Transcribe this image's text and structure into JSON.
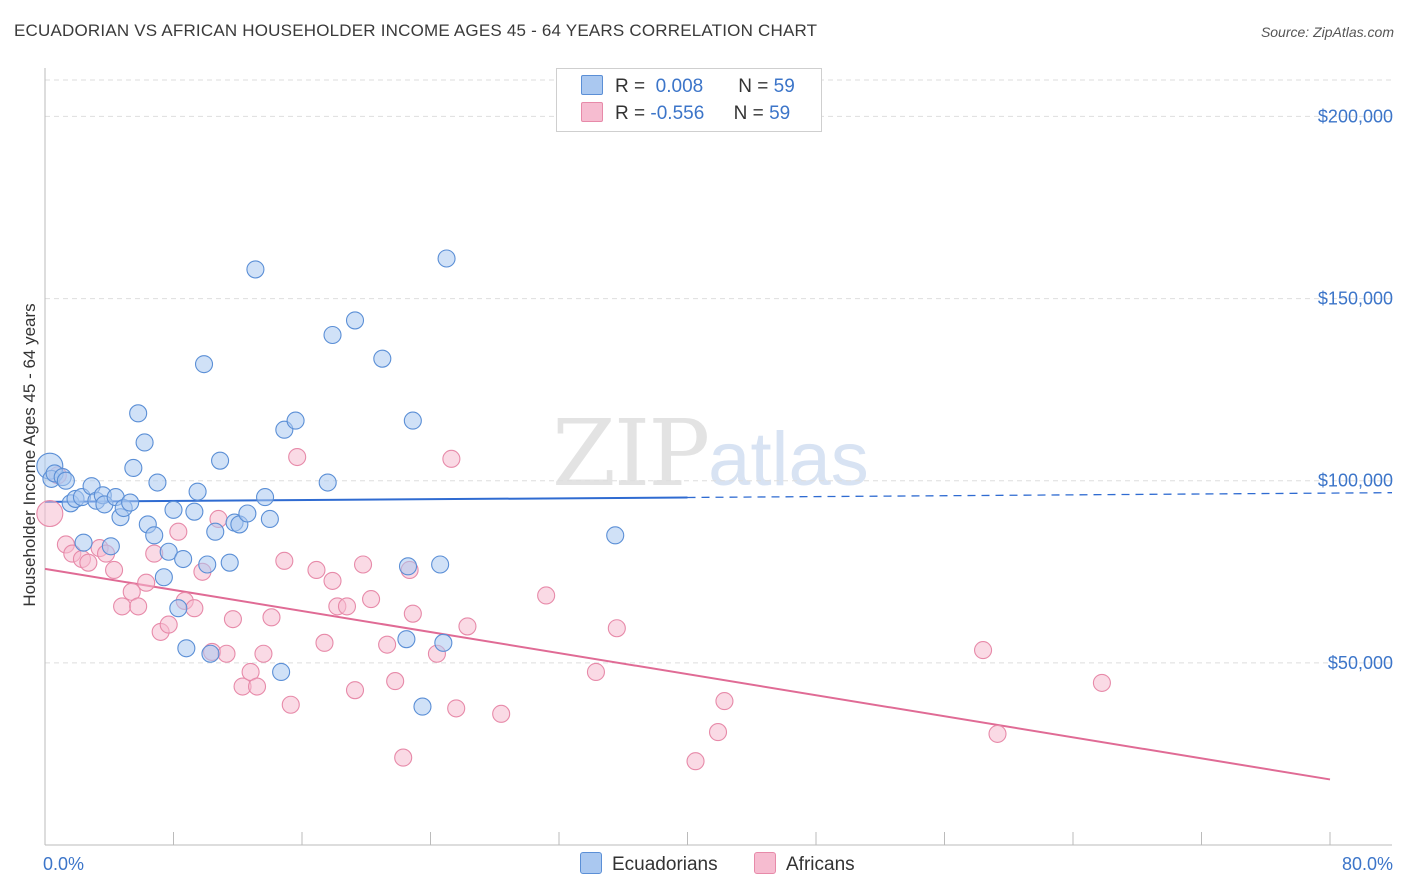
{
  "header": {
    "title": "ECUADORIAN VS AFRICAN HOUSEHOLDER INCOME AGES 45 - 64 YEARS CORRELATION CHART",
    "source": "Source: ZipAtlas.com"
  },
  "watermark": {
    "zip": "ZIP",
    "atlas": "atlas"
  },
  "legend": {
    "rows": [
      {
        "r_label": "R =",
        "r_value": "0.008",
        "n_label": "N =",
        "n_value": "59"
      },
      {
        "r_label": "R =",
        "r_value": "-0.556",
        "n_label": "N =",
        "n_value": "59"
      }
    ]
  },
  "bottom_legend": {
    "series1": "Ecuadorians",
    "series2": "Africans"
  },
  "colors": {
    "ecuadorian_fill": "#aac8f0",
    "ecuadorian_stroke": "#5b8fd6",
    "ecuadorian_line": "#2f6bd1",
    "african_fill": "#f6bcd0",
    "african_stroke": "#e78aa9",
    "african_line": "#e06b95",
    "tick_text": "#3c75c9",
    "grid": "#dedede"
  },
  "chart_data": {
    "type": "scatter",
    "title": "ECUADORIAN VS AFRICAN HOUSEHOLDER INCOME AGES 45 - 64 YEARS CORRELATION CHART",
    "xlabel": "",
    "ylabel": "Householder Income Ages 45 - 64 years",
    "xlim": [
      0,
      80
    ],
    "ylim": [
      0,
      210000
    ],
    "x_tick_labels": [
      "0.0%",
      "80.0%"
    ],
    "y_ticks": [
      50000,
      100000,
      150000,
      200000
    ],
    "y_tick_labels": [
      "$50,000",
      "$100,000",
      "$150,000",
      "$200,000"
    ],
    "grid": true,
    "legend_placement": "top-center",
    "series": [
      {
        "name": "Ecuadorians",
        "r": 0.008,
        "n": 59,
        "trend": {
          "x0": 0,
          "y0": 94200,
          "x1": 80,
          "y1": 96600,
          "solid_until_x": 40
        },
        "points": [
          [
            0.3,
            104000
          ],
          [
            0.4,
            100500
          ],
          [
            0.6,
            102000
          ],
          [
            1.1,
            101000
          ],
          [
            1.3,
            100000
          ],
          [
            1.6,
            93800
          ],
          [
            1.9,
            95000
          ],
          [
            2.3,
            95500
          ],
          [
            2.9,
            98500
          ],
          [
            3.2,
            94500
          ],
          [
            3.6,
            96000
          ],
          [
            3.7,
            93500
          ],
          [
            4.4,
            95500
          ],
          [
            4.7,
            90000
          ],
          [
            4.9,
            92500
          ],
          [
            5.3,
            94000
          ],
          [
            2.4,
            83000
          ],
          [
            4.1,
            82000
          ],
          [
            5.5,
            103500
          ],
          [
            5.8,
            118500
          ],
          [
            6.2,
            110500
          ],
          [
            6.4,
            88000
          ],
          [
            6.8,
            85000
          ],
          [
            7.0,
            99500
          ],
          [
            7.4,
            73500
          ],
          [
            7.7,
            80500
          ],
          [
            8.0,
            92000
          ],
          [
            8.3,
            65000
          ],
          [
            8.6,
            78500
          ],
          [
            8.8,
            54000
          ],
          [
            9.3,
            91500
          ],
          [
            9.5,
            97000
          ],
          [
            9.9,
            132000
          ],
          [
            10.1,
            77000
          ],
          [
            10.3,
            52500
          ],
          [
            10.6,
            86000
          ],
          [
            10.9,
            105500
          ],
          [
            11.5,
            77500
          ],
          [
            11.8,
            88500
          ],
          [
            12.1,
            88000
          ],
          [
            12.6,
            91000
          ],
          [
            13.1,
            158000
          ],
          [
            13.7,
            95500
          ],
          [
            14.0,
            89500
          ],
          [
            14.7,
            47500
          ],
          [
            14.9,
            114000
          ],
          [
            15.6,
            116500
          ],
          [
            17.6,
            99500
          ],
          [
            17.9,
            140000
          ],
          [
            19.3,
            144000
          ],
          [
            21.0,
            133500
          ],
          [
            22.5,
            56500
          ],
          [
            22.6,
            76500
          ],
          [
            22.9,
            116500
          ],
          [
            23.5,
            38000
          ],
          [
            24.6,
            77000
          ],
          [
            24.8,
            55500
          ],
          [
            25.0,
            161000
          ],
          [
            35.5,
            85000
          ]
        ]
      },
      {
        "name": "Africans",
        "r": -0.556,
        "n": 59,
        "trend": {
          "x0": 0,
          "y0": 75800,
          "x1": 80,
          "y1": 18000
        },
        "points": [
          [
            0.3,
            91000
          ],
          [
            1.3,
            82500
          ],
          [
            1.7,
            80000
          ],
          [
            2.3,
            78500
          ],
          [
            2.7,
            77500
          ],
          [
            3.4,
            81500
          ],
          [
            3.8,
            80000
          ],
          [
            4.3,
            75500
          ],
          [
            4.8,
            65500
          ],
          [
            5.4,
            69500
          ],
          [
            5.8,
            65500
          ],
          [
            6.3,
            72000
          ],
          [
            6.8,
            80000
          ],
          [
            7.2,
            58500
          ],
          [
            7.7,
            60500
          ],
          [
            8.3,
            86000
          ],
          [
            8.7,
            67000
          ],
          [
            9.3,
            65000
          ],
          [
            9.8,
            75000
          ],
          [
            10.4,
            53000
          ],
          [
            10.8,
            89500
          ],
          [
            11.3,
            52500
          ],
          [
            11.7,
            62000
          ],
          [
            12.3,
            43500
          ],
          [
            12.8,
            47500
          ],
          [
            13.2,
            43500
          ],
          [
            13.6,
            52500
          ],
          [
            14.1,
            62500
          ],
          [
            14.9,
            78000
          ],
          [
            15.3,
            38500
          ],
          [
            15.7,
            106500
          ],
          [
            16.9,
            75500
          ],
          [
            17.4,
            55500
          ],
          [
            17.9,
            72500
          ],
          [
            18.2,
            65500
          ],
          [
            18.8,
            65500
          ],
          [
            19.3,
            42500
          ],
          [
            19.8,
            77000
          ],
          [
            20.3,
            67500
          ],
          [
            21.3,
            55000
          ],
          [
            21.8,
            45000
          ],
          [
            22.3,
            24000
          ],
          [
            22.7,
            75500
          ],
          [
            22.9,
            63500
          ],
          [
            24.4,
            52500
          ],
          [
            25.3,
            106000
          ],
          [
            25.6,
            37500
          ],
          [
            26.3,
            60000
          ],
          [
            28.4,
            36000
          ],
          [
            31.2,
            68500
          ],
          [
            34.3,
            47500
          ],
          [
            35.6,
            59500
          ],
          [
            40.5,
            23000
          ],
          [
            41.9,
            31000
          ],
          [
            42.3,
            39500
          ],
          [
            58.4,
            53500
          ],
          [
            59.3,
            30500
          ],
          [
            65.8,
            44500
          ],
          [
            0.8,
            101500
          ]
        ]
      }
    ]
  }
}
